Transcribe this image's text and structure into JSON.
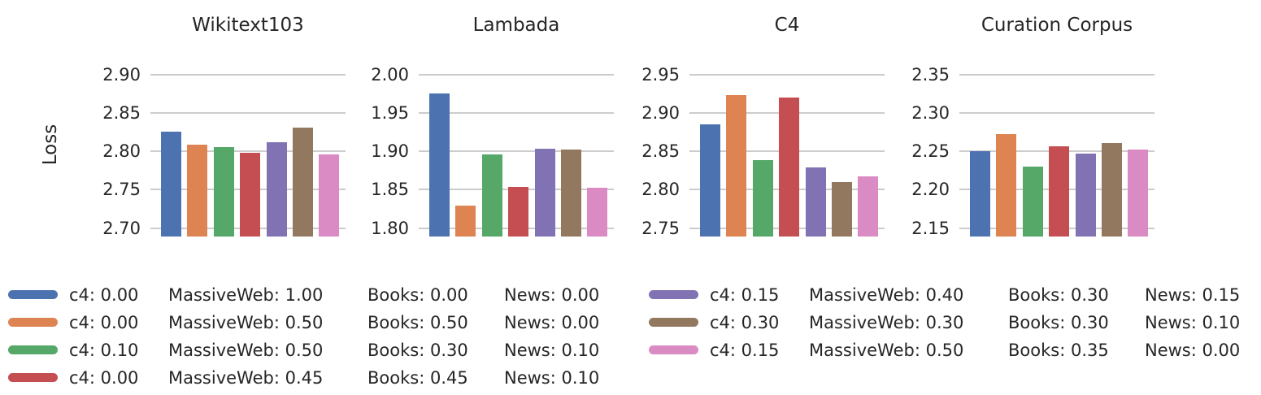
{
  "figure": {
    "ylabel": "Loss",
    "palette": [
      "#4C72B0",
      "#DD8452",
      "#55A868",
      "#C44E52",
      "#8172B3",
      "#937860",
      "#DA8BC3"
    ],
    "grid_color": "#cccccc",
    "text_color": "#262626",
    "background": "#ffffff"
  },
  "chart_data": [
    {
      "type": "bar",
      "title": "Wikitext103",
      "ylabel": "Loss",
      "yticks": [
        2.7,
        2.75,
        2.8,
        2.85,
        2.9
      ],
      "ytick_labels": [
        "2.70",
        "2.75",
        "2.80",
        "2.85",
        "2.90"
      ],
      "ylim": [
        2.689,
        2.918
      ],
      "grid": true,
      "values": [
        2.826,
        2.809,
        2.806,
        2.798,
        2.812,
        2.831,
        2.796
      ]
    },
    {
      "type": "bar",
      "title": "Lambada",
      "ylabel": "Loss",
      "yticks": [
        1.8,
        1.85,
        1.9,
        1.95,
        2.0
      ],
      "ytick_labels": [
        "1.80",
        "1.85",
        "1.90",
        "1.95",
        "2.00"
      ],
      "ylim": [
        1.789,
        2.018
      ],
      "grid": true,
      "values": [
        1.976,
        1.829,
        1.896,
        1.854,
        1.904,
        1.902,
        1.853
      ]
    },
    {
      "type": "bar",
      "title": "C4",
      "ylabel": "Loss",
      "yticks": [
        2.75,
        2.8,
        2.85,
        2.9,
        2.95
      ],
      "ytick_labels": [
        "2.75",
        "2.80",
        "2.85",
        "2.90",
        "2.95"
      ],
      "ylim": [
        2.739,
        2.968
      ],
      "grid": true,
      "values": [
        2.885,
        2.924,
        2.839,
        2.92,
        2.829,
        2.81,
        2.818
      ]
    },
    {
      "type": "bar",
      "title": "Curation Corpus",
      "ylabel": "Loss",
      "yticks": [
        2.15,
        2.2,
        2.25,
        2.3,
        2.35
      ],
      "ytick_labels": [
        "2.15",
        "2.20",
        "2.25",
        "2.30",
        "2.35"
      ],
      "ylim": [
        2.139,
        2.368
      ],
      "grid": true,
      "values": [
        2.25,
        2.273,
        2.23,
        2.257,
        2.247,
        2.261,
        2.253
      ]
    }
  ],
  "legend": {
    "position": "bottom",
    "columns": [
      [
        {
          "color_index": 0,
          "parts": [
            "c4: 0.00",
            "MassiveWeb: 1.00",
            "Books: 0.00",
            "News: 0.00"
          ]
        },
        {
          "color_index": 1,
          "parts": [
            "c4: 0.00",
            "MassiveWeb: 0.50",
            "Books: 0.50",
            "News: 0.00"
          ]
        },
        {
          "color_index": 2,
          "parts": [
            "c4: 0.10",
            "MassiveWeb: 0.50",
            "Books: 0.30",
            "News: 0.10"
          ]
        },
        {
          "color_index": 3,
          "parts": [
            "c4: 0.00",
            "MassiveWeb: 0.45",
            "Books: 0.45",
            "News: 0.10"
          ]
        }
      ],
      [
        {
          "color_index": 4,
          "parts": [
            "c4: 0.15",
            "MassiveWeb: 0.40",
            "Books: 0.30",
            "News: 0.15"
          ]
        },
        {
          "color_index": 5,
          "parts": [
            "c4: 0.30",
            "MassiveWeb: 0.30",
            "Books: 0.30",
            "News: 0.10"
          ]
        },
        {
          "color_index": 6,
          "parts": [
            "c4: 0.15",
            "MassiveWeb: 0.50",
            "Books: 0.35",
            "News: 0.00"
          ]
        }
      ]
    ]
  }
}
